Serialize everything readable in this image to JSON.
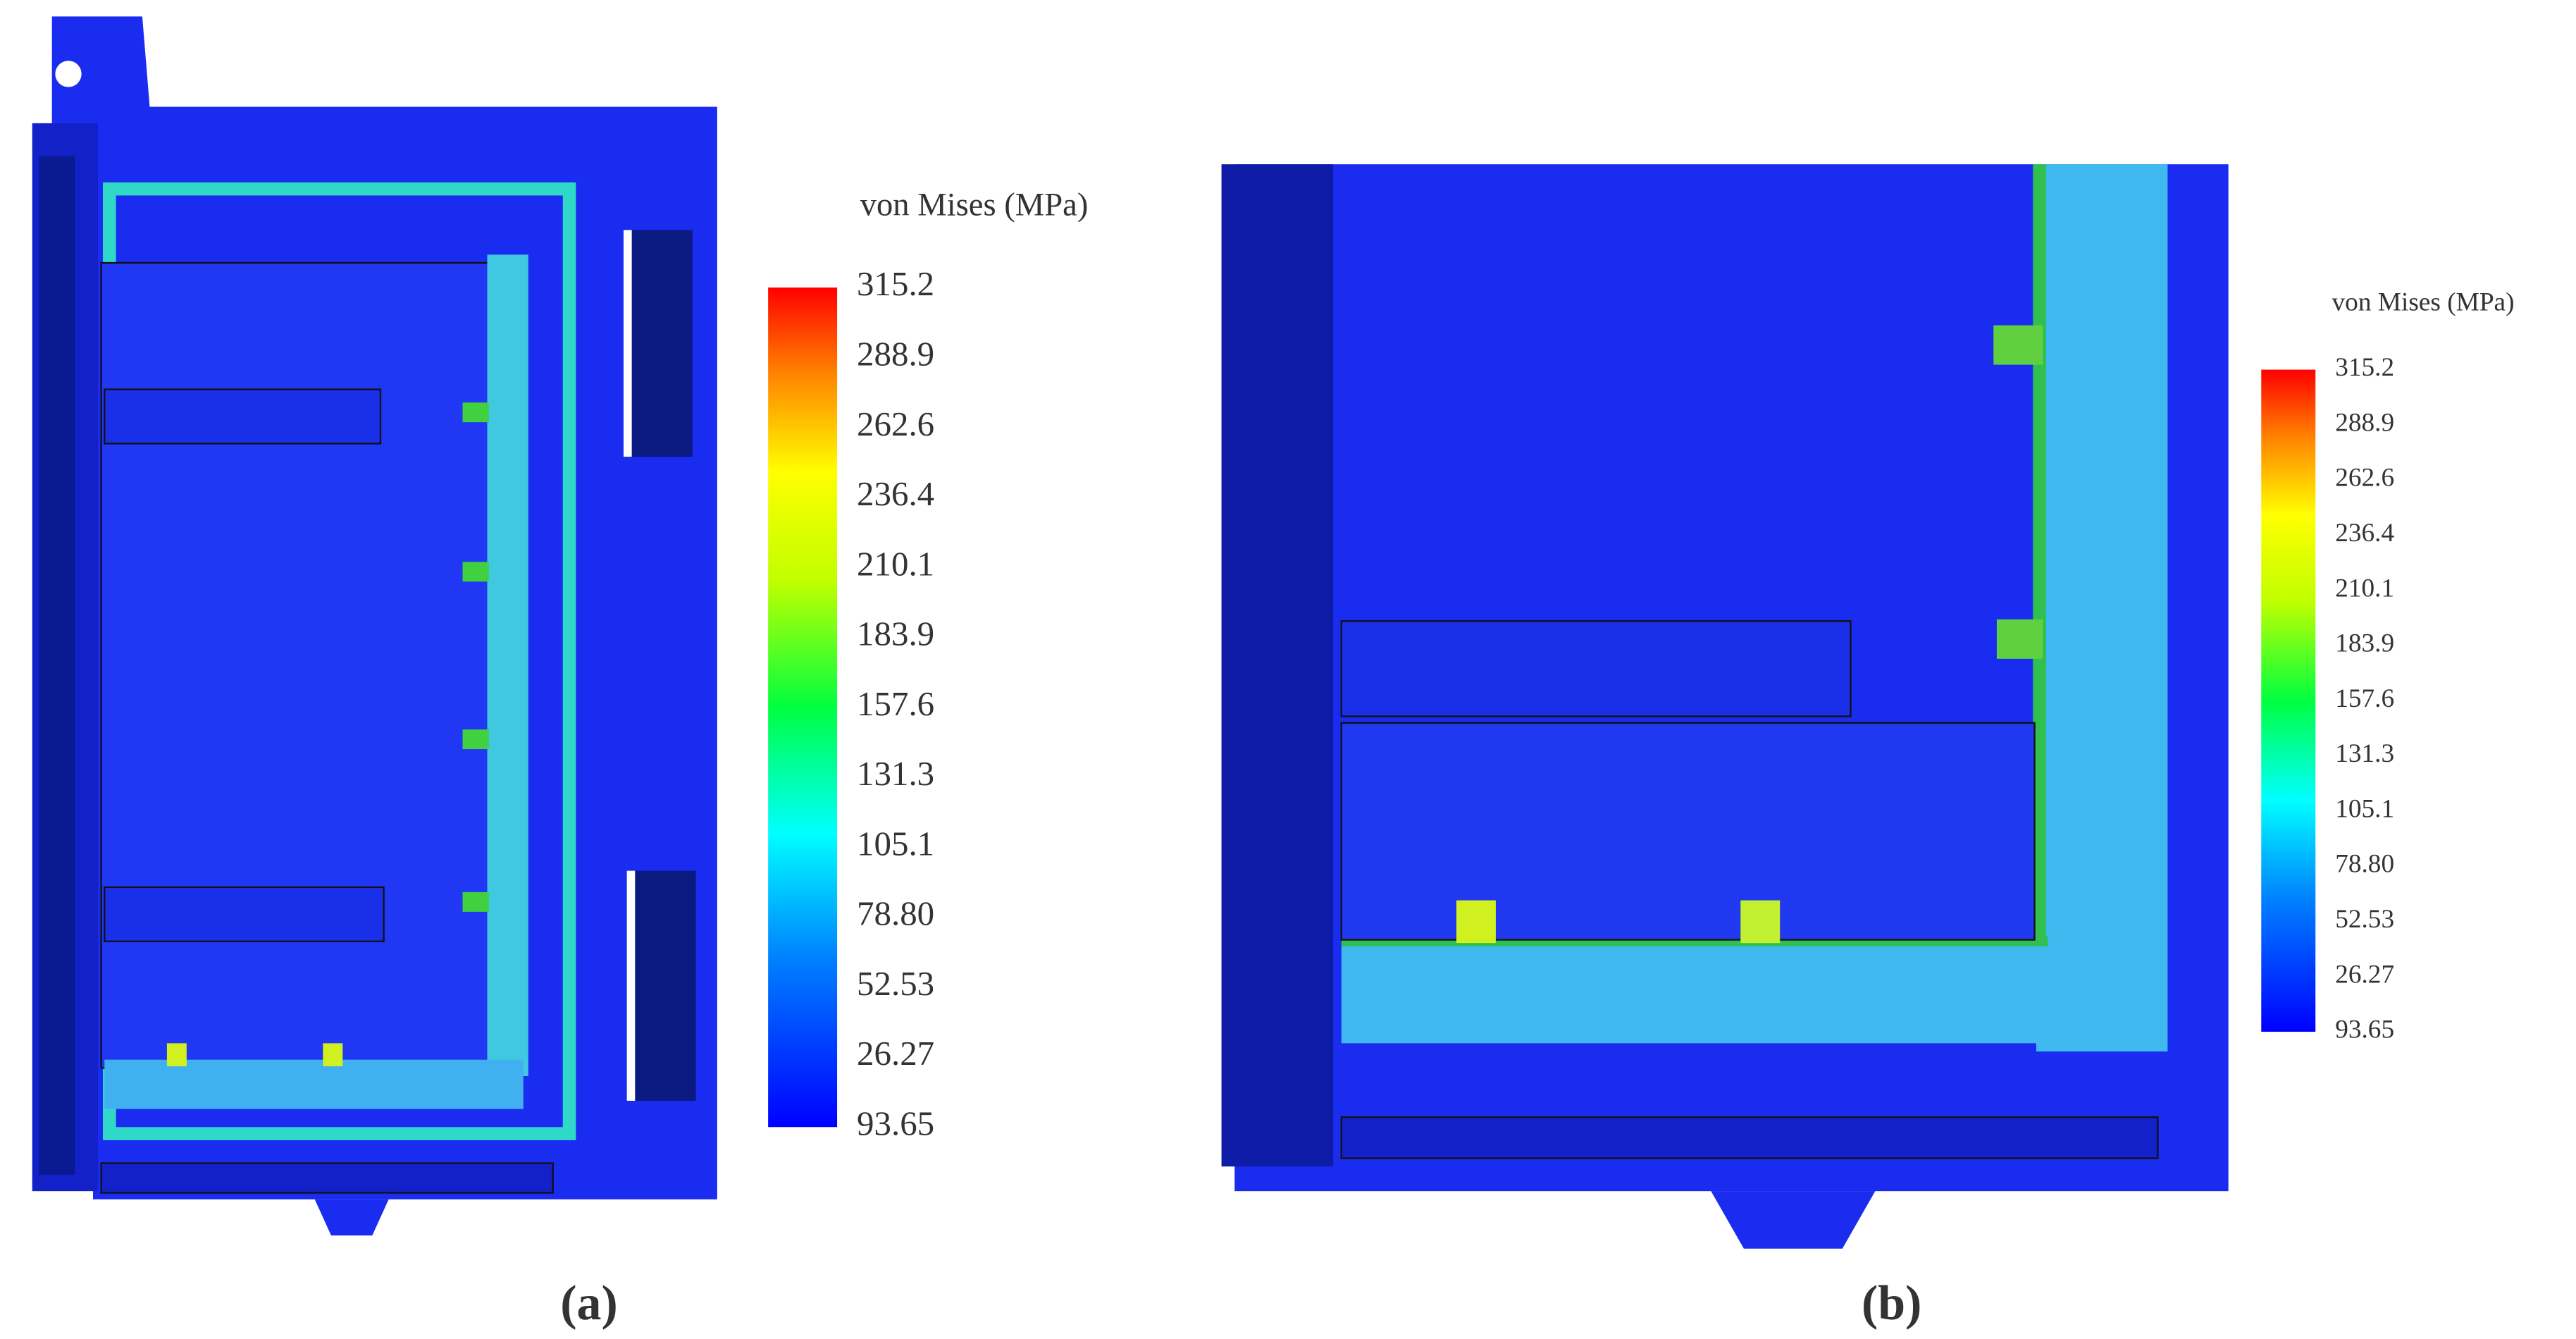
{
  "panels": [
    {
      "legend_title": "von Mises (MPa)",
      "legend_labels": [
        "315.2",
        "288.9",
        "262.6",
        "236.4",
        "210.1",
        "183.9",
        "157.6",
        "131.3",
        "105.1",
        "78.80",
        "52.53",
        "26.27",
        "93.65"
      ],
      "caption": "(a)"
    },
    {
      "legend_title": "von Mises (MPa)",
      "legend_labels": [
        "315.2",
        "288.9",
        "262.6",
        "236.4",
        "210.1",
        "183.9",
        "157.6",
        "131.3",
        "105.1",
        "78.80",
        "52.53",
        "26.27",
        "93.65"
      ],
      "caption": "(b)"
    }
  ]
}
